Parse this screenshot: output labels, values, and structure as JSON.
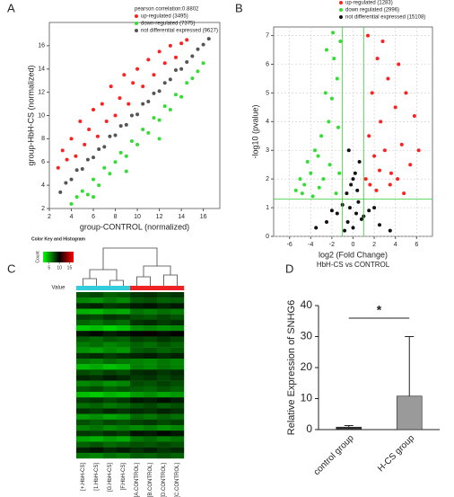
{
  "chart_data": [
    {
      "type": "scatter",
      "label": "A",
      "legend_title": "pearson correlation:0.8802",
      "xlabel": "group-CONTROL (normalized)",
      "ylabel": "group-HbH-CS (normalized)",
      "xlim": [
        2,
        17.5
      ],
      "ylim": [
        2,
        18
      ],
      "xticks": [
        2,
        4,
        6,
        8,
        10,
        12,
        14,
        16
      ],
      "yticks": [
        2,
        4,
        6,
        8,
        10,
        12,
        14,
        16
      ],
      "grid": false,
      "legend": "top-right",
      "series": [
        {
          "name": "up-regulated (3495)",
          "color": "#ff2020",
          "x": [
            2.8,
            3.2,
            3.6,
            4.0,
            4.4,
            4.8,
            5.2,
            5.6,
            6.0,
            6.4,
            6.8,
            7.2,
            7.6,
            8.0,
            8.4,
            8.8,
            9.2,
            9.6,
            10.0,
            10.5,
            11.0,
            11.5,
            12.0,
            12.5,
            13.0,
            13.5,
            14.0,
            14.5
          ],
          "y": [
            5.5,
            7.0,
            6.2,
            8.0,
            6.5,
            9.5,
            7.5,
            8.8,
            10.5,
            8.2,
            11.0,
            9.5,
            12.5,
            10.0,
            11.5,
            13.5,
            11.0,
            12.8,
            14.0,
            12.5,
            14.8,
            13.5,
            15.5,
            14.5,
            16.0,
            15.0,
            16.2,
            16.5
          ]
        },
        {
          "name": "down-regulated (7375)",
          "color": "#33dd33",
          "x": [
            4.0,
            4.5,
            5.0,
            5.5,
            6.0,
            6.5,
            7.0,
            7.5,
            8.0,
            8.5,
            9.0,
            9.5,
            10.0,
            10.5,
            11.0,
            11.5,
            12.0,
            12.5,
            13.0,
            13.5,
            14.0,
            14.5,
            15.0,
            15.5,
            16.0,
            6.0,
            9.0,
            12.0
          ],
          "y": [
            2.4,
            3.0,
            3.5,
            3.2,
            4.5,
            4.0,
            5.5,
            5.0,
            6.0,
            6.8,
            6.5,
            7.8,
            7.5,
            8.8,
            8.5,
            9.8,
            9.6,
            10.8,
            10.5,
            11.8,
            11.6,
            12.8,
            13.2,
            13.8,
            14.5,
            3.0,
            5.2,
            8.0
          ]
        },
        {
          "name": "not differential expressed (9627)",
          "color": "#555555",
          "x": [
            3.0,
            3.5,
            4.0,
            4.5,
            5.0,
            5.5,
            6.0,
            6.5,
            7.0,
            7.5,
            8.0,
            8.5,
            9.0,
            9.5,
            10.0,
            10.5,
            11.0,
            11.5,
            12.0,
            12.5,
            13.0,
            13.5,
            14.0,
            14.5,
            15.0,
            15.5,
            16.0,
            16.5
          ],
          "y": [
            3.4,
            4.2,
            4.5,
            5.3,
            5.4,
            6.2,
            6.4,
            7.1,
            7.3,
            8.2,
            8.3,
            9.1,
            9.2,
            10.0,
            10.1,
            11.0,
            11.2,
            11.9,
            12.1,
            12.8,
            13.1,
            13.9,
            14.0,
            14.6,
            15.1,
            15.7,
            16.1,
            16.6
          ]
        }
      ]
    },
    {
      "type": "scatter",
      "label": "B",
      "xlabel": "log2 (Fold Change)",
      "subtitle": "HbH-CS vs CONTROL",
      "ylabel": "-log10 (pvalue)",
      "xlim": [
        -7.5,
        7.5
      ],
      "ylim": [
        0,
        7.3
      ],
      "xticks": [
        -6,
        -4,
        -2,
        0,
        2,
        4,
        6
      ],
      "yticks": [
        0,
        1,
        2,
        3,
        4,
        5,
        6,
        7
      ],
      "grid": true,
      "legend": "top-right",
      "thresholds": {
        "x": [
          -1,
          1
        ],
        "y": [
          1.3
        ],
        "color": "#33cc33"
      },
      "series": [
        {
          "name": "up-regulated (1283)",
          "color": "#ff2020",
          "x": [
            1.2,
            1.5,
            1.8,
            2.0,
            2.3,
            2.6,
            3.0,
            3.3,
            3.6,
            4.0,
            4.3,
            4.6,
            5.0,
            5.4,
            5.8,
            6.2,
            1.4,
            2.2,
            2.8,
            3.5,
            4.2,
            4.8,
            1.6,
            2.5
          ],
          "y": [
            2.0,
            3.5,
            5.0,
            2.8,
            6.2,
            4.0,
            3.0,
            5.5,
            2.2,
            4.5,
            6.0,
            3.2,
            5.0,
            2.5,
            4.2,
            3.0,
            7.0,
            1.6,
            6.8,
            1.8,
            2.0,
            1.5,
            1.8,
            2.3
          ]
        },
        {
          "name": "down regulated (2996)",
          "color": "#33dd33",
          "x": [
            -1.2,
            -1.5,
            -1.8,
            -2.0,
            -2.3,
            -2.6,
            -3.0,
            -3.3,
            -3.6,
            -4.0,
            -4.3,
            -4.6,
            -5.0,
            -5.4,
            -1.4,
            -2.2,
            -2.8,
            -1.6,
            -3.2,
            -1.3,
            -2.5,
            -1.9,
            -3.8,
            -4.8
          ],
          "y": [
            6.8,
            5.5,
            6.2,
            4.8,
            4.0,
            5.0,
            3.5,
            2.8,
            3.0,
            2.2,
            2.6,
            1.8,
            2.0,
            1.6,
            3.8,
            2.5,
            2.0,
            1.5,
            1.7,
            2.2,
            6.5,
            7.1,
            1.4,
            1.5
          ]
        },
        {
          "name": "not differential expressed (15108)",
          "color": "#111111",
          "x": [
            -0.5,
            -0.3,
            0,
            0.3,
            0.5,
            -0.8,
            0.8,
            -1.5,
            1.5,
            -2.5,
            2.5,
            -3.5,
            3.5,
            -0.2,
            0.2,
            -0.6,
            0.6,
            -1.0,
            1.0,
            -2.0,
            2.0,
            -0.4,
            0.4,
            0
          ],
          "y": [
            0.5,
            1.0,
            0.3,
            0.8,
            1.2,
            0.2,
            0.6,
            0.8,
            0.9,
            0.5,
            0.4,
            0.3,
            0.2,
            1.8,
            2.2,
            1.5,
            2.6,
            1.1,
            0.7,
            0.9,
            1.0,
            3.0,
            1.6,
            2.0
          ]
        }
      ]
    },
    {
      "type": "heatmap",
      "label": "C",
      "key_title": "Color Key and Histogram",
      "key_ylabel": "Count",
      "key_xlabel": "Value",
      "key_lim": [
        2,
        17
      ],
      "key_ticks": [
        5,
        10,
        15
      ],
      "columns": [
        "[+.HbH-CS]",
        "[1.HbH-CS]",
        "[G.HbH-CS]",
        "[F.HbH-CS]",
        "[A.CONTROL]",
        "[B.CONTROL]",
        "[D.CONTROL]",
        "[C.CONTROL]"
      ],
      "column_colors": [
        "#33ccdd",
        "#33ccdd",
        "#33ccdd",
        "#33ccdd",
        "#ee2222",
        "#ee2222",
        "#ee2222",
        "#ee2222"
      ],
      "values": [
        [
          8.2,
          8.5,
          7.9,
          8.1,
          8.8,
          9.0,
          8.6,
          8.9
        ],
        [
          7.1,
          6.8,
          7.4,
          7.0,
          8.1,
          8.3,
          7.9,
          8.0
        ],
        [
          9.1,
          9.3,
          8.8,
          9.0,
          9.4,
          9.6,
          9.2,
          9.5
        ],
        [
          6.2,
          6.0,
          6.5,
          6.3,
          7.5,
          7.2,
          7.6,
          7.3
        ],
        [
          8.6,
          8.4,
          8.9,
          8.7,
          8.3,
          8.1,
          8.5,
          8.2
        ],
        [
          7.8,
          7.5,
          8.0,
          7.7,
          8.9,
          9.1,
          8.7,
          9.0
        ],
        [
          5.6,
          5.9,
          5.4,
          5.8,
          6.9,
          7.1,
          6.8,
          7.0
        ],
        [
          9.5,
          9.8,
          9.3,
          9.6,
          9.9,
          10.2,
          9.7,
          10.0
        ],
        [
          8.0,
          7.7,
          8.2,
          7.9,
          8.6,
          8.4,
          8.8,
          8.5
        ],
        [
          7.3,
          7.6,
          7.1,
          7.4,
          7.9,
          7.6,
          8.1,
          7.8
        ],
        [
          6.8,
          6.5,
          7.0,
          6.7,
          8.0,
          8.2,
          7.8,
          8.1
        ],
        [
          8.9,
          9.1,
          8.7,
          9.0,
          9.2,
          9.4,
          9.0,
          9.3
        ],
        [
          7.5,
          7.2,
          7.7,
          7.4,
          7.2,
          7.0,
          7.4,
          7.1
        ],
        [
          6.0,
          6.3,
          5.8,
          6.1,
          7.3,
          7.0,
          7.5,
          7.2
        ],
        [
          8.4,
          8.1,
          8.6,
          8.3,
          9.0,
          9.2,
          8.8,
          9.1
        ],
        [
          9.2,
          9.0,
          9.4,
          9.1,
          8.7,
          8.9,
          8.5,
          8.8
        ],
        [
          7.0,
          7.3,
          6.8,
          7.1,
          8.4,
          8.2,
          8.6,
          8.3
        ],
        [
          8.1,
          8.4,
          7.9,
          8.2,
          8.0,
          7.8,
          8.2,
          7.9
        ],
        [
          5.9,
          5.6,
          6.1,
          5.8,
          6.6,
          6.9,
          6.4,
          6.7
        ],
        [
          8.7,
          8.9,
          8.5,
          8.8,
          9.5,
          9.3,
          9.7,
          9.4
        ],
        [
          7.6,
          7.9,
          7.4,
          7.7,
          8.2,
          8.5,
          8.0,
          8.3
        ],
        [
          9.0,
          8.7,
          9.2,
          8.9,
          9.1,
          8.9,
          9.3,
          9.0
        ],
        [
          6.6,
          6.9,
          6.4,
          6.7,
          7.7,
          7.4,
          7.9,
          7.6
        ],
        [
          8.3,
          8.0,
          8.5,
          8.2,
          8.6,
          8.8,
          8.4,
          8.7
        ],
        [
          7.2,
          7.5,
          7.0,
          7.3,
          7.0,
          7.3,
          6.8,
          7.1
        ],
        [
          8.8,
          8.6,
          9.0,
          8.7,
          9.6,
          9.4,
          9.8,
          9.5
        ],
        [
          6.4,
          6.1,
          6.6,
          6.3,
          7.4,
          7.7,
          7.2,
          7.5
        ],
        [
          7.9,
          8.2,
          7.7,
          8.0,
          8.3,
          8.1,
          8.5,
          8.2
        ],
        [
          9.3,
          9.6,
          9.1,
          9.4,
          9.0,
          9.3,
          8.8,
          9.1
        ],
        [
          7.4,
          7.1,
          7.6,
          7.3,
          8.0,
          7.8,
          8.2,
          7.9
        ]
      ]
    },
    {
      "type": "bar",
      "label": "D",
      "ylabel": "Relative Expression of SNHG6",
      "annotation": "*",
      "categories": [
        "control group",
        "H-CS group"
      ],
      "values": [
        0.8,
        10.8
      ],
      "errors": [
        0.5,
        19.2
      ],
      "colors": [
        "#333333",
        "#9a9a9a"
      ],
      "ylim": [
        0,
        40
      ],
      "yticks": [
        0,
        10,
        20,
        30,
        40
      ]
    }
  ]
}
